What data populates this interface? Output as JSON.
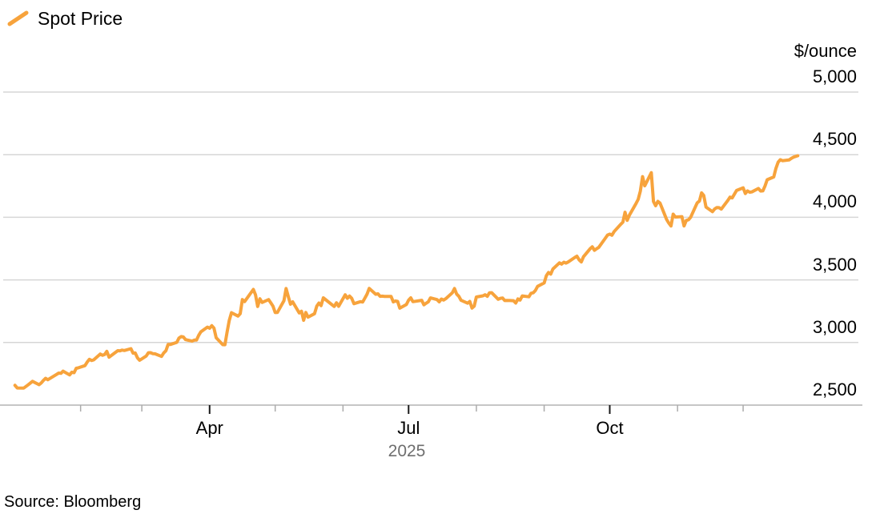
{
  "legend": {
    "label": "Spot Price"
  },
  "source": "Source: Bloomberg",
  "colors": {
    "line": "#F7A33C",
    "grid": "#D6D6D6",
    "baseline": "#C6C6C6",
    "tick_minor": "#ABABAB",
    "tick_major": "#1A1A1A",
    "text": "#000000",
    "muted_text": "#6E6E6E"
  },
  "chart_data": {
    "type": "line",
    "title": "",
    "series_name": "Spot Price",
    "ylabel": "$/ounce",
    "year_label": "2025",
    "ylim": [
      2500,
      5000
    ],
    "grid": "horizontal",
    "legend_position": "top-left",
    "yticks": [
      {
        "value": 2500,
        "label": "2,500"
      },
      {
        "value": 3000,
        "label": "3,000"
      },
      {
        "value": 3500,
        "label": "3,500"
      },
      {
        "value": 4000,
        "label": "4,000"
      },
      {
        "value": 4500,
        "label": "4,500"
      },
      {
        "value": 5000,
        "label": "5,000"
      }
    ],
    "x_range": [
      "2025-01-01",
      "2025-12-31"
    ],
    "xticks": [
      {
        "date": "2025-02-01",
        "label": "",
        "major": false
      },
      {
        "date": "2025-03-01",
        "label": "",
        "major": false
      },
      {
        "date": "2025-04-01",
        "label": "Apr",
        "major": true
      },
      {
        "date": "2025-05-01",
        "label": "",
        "major": false
      },
      {
        "date": "2025-06-01",
        "label": "",
        "major": false
      },
      {
        "date": "2025-07-01",
        "label": "Jul",
        "major": true
      },
      {
        "date": "2025-08-01",
        "label": "",
        "major": false
      },
      {
        "date": "2025-09-01",
        "label": "",
        "major": false
      },
      {
        "date": "2025-10-01",
        "label": "Oct",
        "major": true
      },
      {
        "date": "2025-11-01",
        "label": "",
        "major": false
      },
      {
        "date": "2025-12-01",
        "label": "",
        "major": false
      }
    ],
    "points": [
      [
        "2025-01-02",
        2658
      ],
      [
        "2025-01-03",
        2637
      ],
      [
        "2025-01-06",
        2636
      ],
      [
        "2025-01-07",
        2649
      ],
      [
        "2025-01-08",
        2662
      ],
      [
        "2025-01-10",
        2690
      ],
      [
        "2025-01-13",
        2663
      ],
      [
        "2025-01-14",
        2677
      ],
      [
        "2025-01-15",
        2697
      ],
      [
        "2025-01-16",
        2714
      ],
      [
        "2025-01-17",
        2703
      ],
      [
        "2025-01-21",
        2745
      ],
      [
        "2025-01-22",
        2756
      ],
      [
        "2025-01-23",
        2754
      ],
      [
        "2025-01-24",
        2771
      ],
      [
        "2025-01-27",
        2741
      ],
      [
        "2025-01-28",
        2763
      ],
      [
        "2025-01-29",
        2759
      ],
      [
        "2025-01-30",
        2794
      ],
      [
        "2025-01-31",
        2798
      ],
      [
        "2025-02-03",
        2815
      ],
      [
        "2025-02-04",
        2843
      ],
      [
        "2025-02-05",
        2866
      ],
      [
        "2025-02-06",
        2856
      ],
      [
        "2025-02-07",
        2861
      ],
      [
        "2025-02-10",
        2908
      ],
      [
        "2025-02-11",
        2898
      ],
      [
        "2025-02-12",
        2904
      ],
      [
        "2025-02-13",
        2929
      ],
      [
        "2025-02-14",
        2883
      ],
      [
        "2025-02-18",
        2935
      ],
      [
        "2025-02-19",
        2933
      ],
      [
        "2025-02-20",
        2939
      ],
      [
        "2025-02-21",
        2936
      ],
      [
        "2025-02-24",
        2951
      ],
      [
        "2025-02-25",
        2915
      ],
      [
        "2025-02-26",
        2916
      ],
      [
        "2025-02-27",
        2877
      ],
      [
        "2025-02-28",
        2858
      ],
      [
        "2025-03-03",
        2892
      ],
      [
        "2025-03-04",
        2918
      ],
      [
        "2025-03-05",
        2919
      ],
      [
        "2025-03-06",
        2911
      ],
      [
        "2025-03-07",
        2910
      ],
      [
        "2025-03-10",
        2889
      ],
      [
        "2025-03-11",
        2916
      ],
      [
        "2025-03-12",
        2934
      ],
      [
        "2025-03-13",
        2984
      ],
      [
        "2025-03-14",
        2984
      ],
      [
        "2025-03-17",
        3001
      ],
      [
        "2025-03-18",
        3035
      ],
      [
        "2025-03-19",
        3047
      ],
      [
        "2025-03-20",
        3044
      ],
      [
        "2025-03-21",
        3023
      ],
      [
        "2025-03-24",
        3011
      ],
      [
        "2025-03-25",
        3019
      ],
      [
        "2025-03-26",
        3019
      ],
      [
        "2025-03-27",
        3057
      ],
      [
        "2025-03-28",
        3085
      ],
      [
        "2025-03-31",
        3123
      ],
      [
        "2025-04-01",
        3114
      ],
      [
        "2025-04-02",
        3134
      ],
      [
        "2025-04-03",
        3115
      ],
      [
        "2025-04-04",
        3038
      ],
      [
        "2025-04-07",
        2983
      ],
      [
        "2025-04-08",
        2982
      ],
      [
        "2025-04-09",
        3083
      ],
      [
        "2025-04-10",
        3176
      ],
      [
        "2025-04-11",
        3238
      ],
      [
        "2025-04-14",
        3211
      ],
      [
        "2025-04-15",
        3230
      ],
      [
        "2025-04-16",
        3343
      ],
      [
        "2025-04-17",
        3327
      ],
      [
        "2025-04-21",
        3424
      ],
      [
        "2025-04-22",
        3381
      ],
      [
        "2025-04-23",
        3288
      ],
      [
        "2025-04-24",
        3349
      ],
      [
        "2025-04-25",
        3320
      ],
      [
        "2025-04-28",
        3343
      ],
      [
        "2025-04-29",
        3317
      ],
      [
        "2025-04-30",
        3289
      ],
      [
        "2025-05-01",
        3239
      ],
      [
        "2025-05-02",
        3240
      ],
      [
        "2025-05-05",
        3334
      ],
      [
        "2025-05-06",
        3431
      ],
      [
        "2025-05-07",
        3365
      ],
      [
        "2025-05-08",
        3306
      ],
      [
        "2025-05-09",
        3325
      ],
      [
        "2025-05-12",
        3236
      ],
      [
        "2025-05-13",
        3250
      ],
      [
        "2025-05-14",
        3177
      ],
      [
        "2025-05-15",
        3240
      ],
      [
        "2025-05-16",
        3203
      ],
      [
        "2025-05-19",
        3230
      ],
      [
        "2025-05-20",
        3290
      ],
      [
        "2025-05-21",
        3315
      ],
      [
        "2025-05-22",
        3295
      ],
      [
        "2025-05-23",
        3357
      ],
      [
        "2025-05-27",
        3301
      ],
      [
        "2025-05-28",
        3288
      ],
      [
        "2025-05-29",
        3317
      ],
      [
        "2025-05-30",
        3289
      ],
      [
        "2025-06-02",
        3381
      ],
      [
        "2025-06-03",
        3353
      ],
      [
        "2025-06-04",
        3371
      ],
      [
        "2025-06-05",
        3352
      ],
      [
        "2025-06-06",
        3310
      ],
      [
        "2025-06-09",
        3326
      ],
      [
        "2025-06-10",
        3323
      ],
      [
        "2025-06-11",
        3355
      ],
      [
        "2025-06-12",
        3386
      ],
      [
        "2025-06-13",
        3432
      ],
      [
        "2025-06-16",
        3385
      ],
      [
        "2025-06-17",
        3389
      ],
      [
        "2025-06-18",
        3369
      ],
      [
        "2025-06-19",
        3370
      ],
      [
        "2025-06-20",
        3368
      ],
      [
        "2025-06-23",
        3368
      ],
      [
        "2025-06-24",
        3324
      ],
      [
        "2025-06-25",
        3332
      ],
      [
        "2025-06-26",
        3328
      ],
      [
        "2025-06-27",
        3274
      ],
      [
        "2025-06-30",
        3303
      ],
      [
        "2025-07-01",
        3338
      ],
      [
        "2025-07-02",
        3357
      ],
      [
        "2025-07-03",
        3326
      ],
      [
        "2025-07-07",
        3337
      ],
      [
        "2025-07-08",
        3301
      ],
      [
        "2025-07-09",
        3313
      ],
      [
        "2025-07-10",
        3324
      ],
      [
        "2025-07-11",
        3356
      ],
      [
        "2025-07-14",
        3343
      ],
      [
        "2025-07-15",
        3325
      ],
      [
        "2025-07-16",
        3347
      ],
      [
        "2025-07-17",
        3339
      ],
      [
        "2025-07-18",
        3350
      ],
      [
        "2025-07-21",
        3397
      ],
      [
        "2025-07-22",
        3431
      ],
      [
        "2025-07-23",
        3387
      ],
      [
        "2025-07-24",
        3368
      ],
      [
        "2025-07-25",
        3337
      ],
      [
        "2025-07-28",
        3314
      ],
      [
        "2025-07-29",
        3328
      ],
      [
        "2025-07-30",
        3275
      ],
      [
        "2025-07-31",
        3290
      ],
      [
        "2025-08-01",
        3363
      ],
      [
        "2025-08-04",
        3373
      ],
      [
        "2025-08-05",
        3381
      ],
      [
        "2025-08-06",
        3369
      ],
      [
        "2025-08-07",
        3397
      ],
      [
        "2025-08-08",
        3398
      ],
      [
        "2025-08-11",
        3345
      ],
      [
        "2025-08-12",
        3353
      ],
      [
        "2025-08-13",
        3355
      ],
      [
        "2025-08-14",
        3335
      ],
      [
        "2025-08-15",
        3336
      ],
      [
        "2025-08-18",
        3334
      ],
      [
        "2025-08-19",
        3315
      ],
      [
        "2025-08-20",
        3348
      ],
      [
        "2025-08-21",
        3339
      ],
      [
        "2025-08-22",
        3372
      ],
      [
        "2025-08-25",
        3365
      ],
      [
        "2025-08-26",
        3393
      ],
      [
        "2025-08-27",
        3397
      ],
      [
        "2025-08-28",
        3416
      ],
      [
        "2025-08-29",
        3448
      ],
      [
        "2025-09-01",
        3476
      ],
      [
        "2025-09-02",
        3533
      ],
      [
        "2025-09-03",
        3559
      ],
      [
        "2025-09-04",
        3546
      ],
      [
        "2025-09-05",
        3587
      ],
      [
        "2025-09-08",
        3636
      ],
      [
        "2025-09-09",
        3626
      ],
      [
        "2025-09-10",
        3641
      ],
      [
        "2025-09-11",
        3634
      ],
      [
        "2025-09-12",
        3643
      ],
      [
        "2025-09-15",
        3679
      ],
      [
        "2025-09-16",
        3689
      ],
      [
        "2025-09-17",
        3660
      ],
      [
        "2025-09-18",
        3644
      ],
      [
        "2025-09-19",
        3685
      ],
      [
        "2025-09-22",
        3748
      ],
      [
        "2025-09-23",
        3764
      ],
      [
        "2025-09-24",
        3736
      ],
      [
        "2025-09-25",
        3749
      ],
      [
        "2025-09-26",
        3760
      ],
      [
        "2025-09-29",
        3833
      ],
      [
        "2025-09-30",
        3858
      ],
      [
        "2025-10-01",
        3866
      ],
      [
        "2025-10-02",
        3857
      ],
      [
        "2025-10-03",
        3886
      ],
      [
        "2025-10-06",
        3944
      ],
      [
        "2025-10-07",
        3961
      ],
      [
        "2025-10-08",
        4040
      ],
      [
        "2025-10-09",
        3976
      ],
      [
        "2025-10-10",
        4018
      ],
      [
        "2025-10-13",
        4110
      ],
      [
        "2025-10-14",
        4143
      ],
      [
        "2025-10-15",
        4209
      ],
      [
        "2025-10-16",
        4325
      ],
      [
        "2025-10-17",
        4251
      ],
      [
        "2025-10-20",
        4356
      ],
      [
        "2025-10-21",
        4126
      ],
      [
        "2025-10-22",
        4092
      ],
      [
        "2025-10-23",
        4127
      ],
      [
        "2025-10-24",
        4113
      ],
      [
        "2025-10-27",
        3983
      ],
      [
        "2025-10-28",
        3954
      ],
      [
        "2025-10-29",
        3930
      ],
      [
        "2025-10-30",
        4025
      ],
      [
        "2025-10-31",
        4002
      ],
      [
        "2025-11-03",
        4005
      ],
      [
        "2025-11-04",
        3931
      ],
      [
        "2025-11-05",
        3975
      ],
      [
        "2025-11-06",
        3980
      ],
      [
        "2025-11-07",
        4000
      ],
      [
        "2025-11-10",
        4115
      ],
      [
        "2025-11-11",
        4130
      ],
      [
        "2025-11-12",
        4195
      ],
      [
        "2025-11-13",
        4174
      ],
      [
        "2025-11-14",
        4082
      ],
      [
        "2025-11-17",
        4045
      ],
      [
        "2025-11-18",
        4067
      ],
      [
        "2025-11-19",
        4078
      ],
      [
        "2025-11-20",
        4077
      ],
      [
        "2025-11-21",
        4065
      ],
      [
        "2025-11-24",
        4135
      ],
      [
        "2025-11-25",
        4161
      ],
      [
        "2025-11-26",
        4155
      ],
      [
        "2025-11-28",
        4214
      ],
      [
        "2025-12-01",
        4235
      ],
      [
        "2025-12-02",
        4190
      ],
      [
        "2025-12-03",
        4211
      ],
      [
        "2025-12-04",
        4200
      ],
      [
        "2025-12-05",
        4203
      ],
      [
        "2025-12-08",
        4230
      ],
      [
        "2025-12-09",
        4210
      ],
      [
        "2025-12-10",
        4211
      ],
      [
        "2025-12-11",
        4250
      ],
      [
        "2025-12-12",
        4300
      ],
      [
        "2025-12-15",
        4322
      ],
      [
        "2025-12-16",
        4390
      ],
      [
        "2025-12-17",
        4440
      ],
      [
        "2025-12-18",
        4460
      ],
      [
        "2025-12-19",
        4452
      ],
      [
        "2025-12-22",
        4458
      ],
      [
        "2025-12-23",
        4470
      ],
      [
        "2025-12-24",
        4480
      ],
      [
        "2025-12-26",
        4492
      ]
    ]
  }
}
